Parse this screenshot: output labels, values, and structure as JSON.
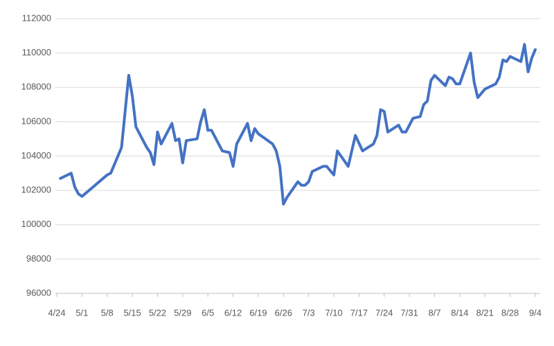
{
  "chart_data": {
    "type": "line",
    "x": [
      "4/25",
      "4/28",
      "4/29",
      "4/30",
      "5/1",
      "5/8",
      "5/9",
      "5/12",
      "5/14",
      "5/15",
      "5/16",
      "5/19",
      "5/20",
      "5/21",
      "5/22",
      "5/23",
      "5/26",
      "5/27",
      "5/28",
      "5/29",
      "5/30",
      "6/2",
      "6/3",
      "6/4",
      "6/5",
      "6/6",
      "6/9",
      "6/11",
      "6/12",
      "6/13",
      "6/16",
      "6/17",
      "6/18",
      "6/19",
      "6/23",
      "6/24",
      "6/25",
      "6/26",
      "6/27",
      "6/30",
      "7/1",
      "7/2",
      "7/3",
      "7/4",
      "7/7",
      "7/8",
      "7/10",
      "7/11",
      "7/14",
      "7/16",
      "7/18",
      "7/21",
      "7/22",
      "7/23",
      "7/24",
      "7/25",
      "7/28",
      "7/29",
      "7/30",
      "8/1",
      "8/3",
      "8/4",
      "8/5",
      "8/6",
      "8/7",
      "8/10",
      "8/11",
      "8/12",
      "8/13",
      "8/14",
      "8/17",
      "8/18",
      "8/19",
      "8/21",
      "8/24",
      "8/25",
      "8/26",
      "8/27",
      "8/28",
      "8/31",
      "9/1",
      "9/2",
      "9/3",
      "9/4"
    ],
    "series": [
      {
        "color": "#4472c4",
        "values": [
          102700,
          103000,
          102200,
          101800,
          101650,
          102900,
          103000,
          104500,
          108700,
          107500,
          105700,
          104500,
          104200,
          103500,
          105400,
          104700,
          105900,
          104900,
          105000,
          103600,
          104900,
          105000,
          106000,
          106700,
          105500,
          105500,
          104300,
          104200,
          103400,
          104700,
          105900,
          104900,
          105600,
          105300,
          104700,
          104300,
          103400,
          101200,
          101600,
          102500,
          102300,
          102300,
          102500,
          103100,
          103400,
          103400,
          102900,
          104300,
          103400,
          105200,
          104300,
          104700,
          105200,
          106700,
          106600,
          105400,
          105800,
          105400,
          105400,
          106200,
          106300,
          107000,
          107200,
          108400,
          108700,
          108100,
          108600,
          108500,
          108200,
          108200,
          110000,
          108300,
          107400,
          107900,
          108200,
          108600,
          109600,
          109500,
          109800,
          109500,
          110500,
          108900,
          109700,
          110200
        ]
      }
    ],
    "xticks": [
      "4/24",
      "5/1",
      "5/8",
      "5/15",
      "5/22",
      "5/29",
      "6/5",
      "6/12",
      "6/19",
      "6/26",
      "7/3",
      "7/10",
      "7/17",
      "7/24",
      "7/31",
      "8/7",
      "8/14",
      "8/21",
      "8/28",
      "9/4"
    ],
    "ylim": [
      96000,
      112000
    ],
    "yticks": [
      96000,
      98000,
      100000,
      102000,
      104000,
      106000,
      108000,
      110000,
      112000
    ],
    "grid": true
  }
}
